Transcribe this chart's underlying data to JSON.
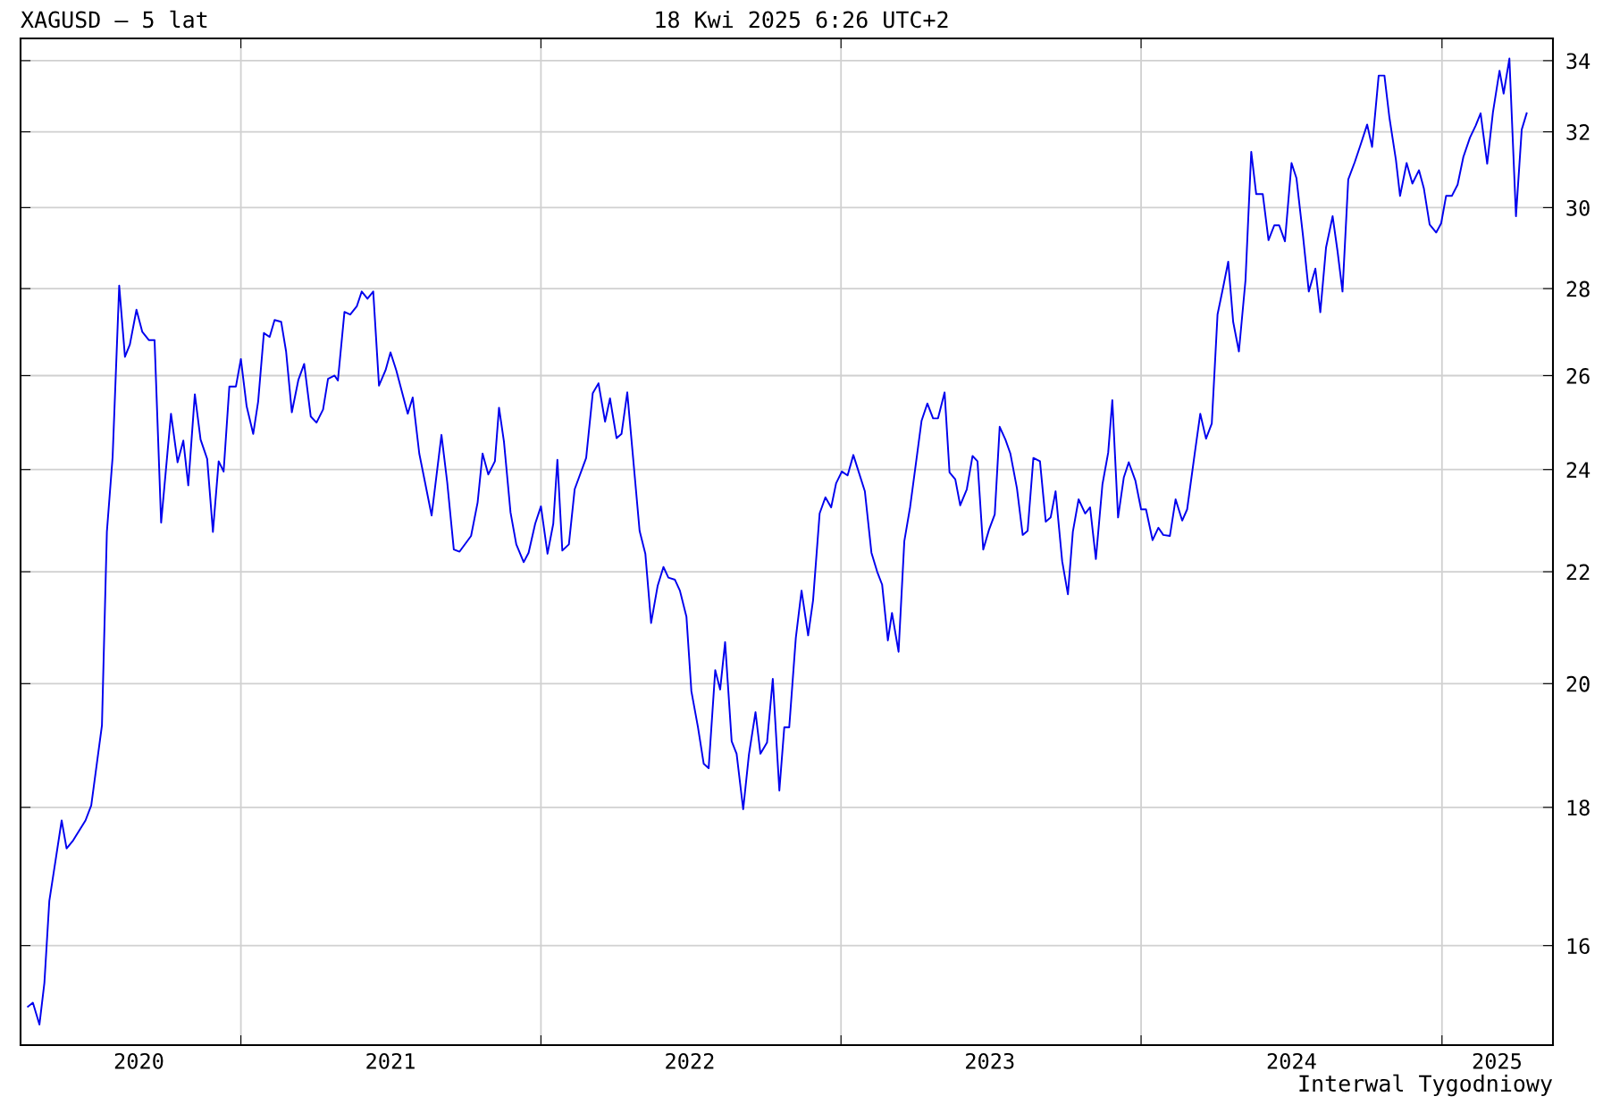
{
  "chart_data": {
    "type": "line",
    "title": "XAGUSD – 5 lat",
    "subtitle": "18 Kwi 2025 6:26 UTC+2",
    "annotations": [
      "Interwal Tygodniowy"
    ],
    "x": [
      "2020-04-17",
      "2020-04-23",
      "2020-05-01",
      "2020-05-07",
      "2020-05-13",
      "2020-05-20",
      "2020-05-28",
      "2020-06-03",
      "2020-06-11",
      "2020-06-26",
      "2020-07-03",
      "2020-07-16",
      "2020-07-22",
      "2020-07-29",
      "2020-08-06",
      "2020-08-13",
      "2020-08-19",
      "2020-08-27",
      "2020-09-03",
      "2020-09-11",
      "2020-09-18",
      "2020-09-26",
      "2020-10-08",
      "2020-10-16",
      "2020-10-23",
      "2020-10-29",
      "2020-11-06",
      "2020-11-13",
      "2020-11-21",
      "2020-11-28",
      "2020-12-05",
      "2020-12-11",
      "2020-12-18",
      "2020-12-26",
      "2021-01-01",
      "2021-01-08",
      "2021-01-16",
      "2021-01-22",
      "2021-01-29",
      "2021-02-05",
      "2021-02-11",
      "2021-02-19",
      "2021-02-25",
      "2021-03-04",
      "2021-03-12",
      "2021-03-19",
      "2021-03-27",
      "2021-04-03",
      "2021-04-11",
      "2021-04-17",
      "2021-04-25",
      "2021-04-29",
      "2021-05-07",
      "2021-05-14",
      "2021-05-22",
      "2021-05-28",
      "2021-06-04",
      "2021-06-11",
      "2021-06-18",
      "2021-06-26",
      "2021-07-02",
      "2021-07-09",
      "2021-07-23",
      "2021-07-29",
      "2021-08-06",
      "2021-08-13",
      "2021-08-21",
      "2021-09-02",
      "2021-09-09",
      "2021-09-17",
      "2021-09-24",
      "2021-10-08",
      "2021-10-16",
      "2021-10-22",
      "2021-10-29",
      "2021-11-06",
      "2021-11-11",
      "2021-11-17",
      "2021-11-25",
      "2021-12-02",
      "2021-12-11",
      "2021-12-17",
      "2021-12-25",
      "2022-01-01",
      "2022-01-09",
      "2022-01-16",
      "2022-01-21",
      "2022-01-27",
      "2022-02-04",
      "2022-02-11",
      "2022-02-25",
      "2022-03-05",
      "2022-03-12",
      "2022-03-20",
      "2022-03-26",
      "2022-04-03",
      "2022-04-09",
      "2022-04-16",
      "2022-05-01",
      "2022-05-08",
      "2022-05-15",
      "2022-05-23",
      "2022-05-30",
      "2022-06-05",
      "2022-06-13",
      "2022-06-19",
      "2022-06-27",
      "2022-07-03",
      "2022-07-11",
      "2022-07-18",
      "2022-07-24",
      "2022-08-01",
      "2022-08-07",
      "2022-08-13",
      "2022-08-21",
      "2022-08-27",
      "2022-09-04",
      "2022-09-11",
      "2022-09-19",
      "2022-09-25",
      "2022-10-03",
      "2022-10-10",
      "2022-10-18",
      "2022-10-24",
      "2022-10-30",
      "2022-11-07",
      "2022-11-14",
      "2022-11-22",
      "2022-11-28",
      "2022-12-06",
      "2022-12-13",
      "2022-12-20",
      "2022-12-26",
      "2023-01-02",
      "2023-01-09",
      "2023-01-16",
      "2023-01-30",
      "2023-02-07",
      "2023-02-14",
      "2023-02-20",
      "2023-02-27",
      "2023-03-04",
      "2023-03-12",
      "2023-03-19",
      "2023-03-26",
      "2023-04-09",
      "2023-04-16",
      "2023-04-23",
      "2023-04-29",
      "2023-05-07",
      "2023-05-13",
      "2023-05-20",
      "2023-05-26",
      "2023-06-03",
      "2023-06-10",
      "2023-06-16",
      "2023-06-23",
      "2023-06-30",
      "2023-07-07",
      "2023-07-13",
      "2023-07-20",
      "2023-07-26",
      "2023-08-03",
      "2023-08-10",
      "2023-08-16",
      "2023-08-23",
      "2023-08-31",
      "2023-09-07",
      "2023-09-13",
      "2023-09-19",
      "2023-09-27",
      "2023-10-04",
      "2023-10-10",
      "2023-10-17",
      "2023-10-25",
      "2023-10-31",
      "2023-11-07",
      "2023-11-15",
      "2023-11-22",
      "2023-11-27",
      "2023-12-04",
      "2023-12-11",
      "2023-12-17",
      "2023-12-25",
      "2024-01-01",
      "2024-01-07",
      "2024-01-15",
      "2024-01-22",
      "2024-01-28",
      "2024-02-05",
      "2024-02-12",
      "2024-02-20",
      "2024-02-26",
      "2024-03-06",
      "2024-03-13",
      "2024-03-20",
      "2024-03-27",
      "2024-04-03",
      "2024-04-10",
      "2024-04-16",
      "2024-04-22",
      "2024-04-29",
      "2024-05-07",
      "2024-05-14",
      "2024-05-20",
      "2024-05-28",
      "2024-06-04",
      "2024-06-11",
      "2024-06-17",
      "2024-06-24",
      "2024-07-02",
      "2024-07-08",
      "2024-07-16",
      "2024-07-23",
      "2024-07-31",
      "2024-08-06",
      "2024-08-13",
      "2024-08-21",
      "2024-08-27",
      "2024-09-02",
      "2024-09-09",
      "2024-09-17",
      "2024-09-24",
      "2024-10-02",
      "2024-10-08",
      "2024-10-16",
      "2024-10-23",
      "2024-10-29",
      "2024-11-06",
      "2024-11-11",
      "2024-11-19",
      "2024-11-26",
      "2024-12-04",
      "2024-12-10",
      "2024-12-17",
      "2024-12-25",
      "2024-12-31",
      "2025-01-06",
      "2025-01-13",
      "2025-01-20",
      "2025-01-27",
      "2025-02-04",
      "2025-02-11",
      "2025-02-17",
      "2025-02-25",
      "2025-03-04",
      "2025-03-12",
      "2025-03-17",
      "2025-03-24",
      "2025-04-01",
      "2025-04-08",
      "2025-04-14"
    ],
    "series": [
      {
        "color": "#0000ee",
        "values": [
          15.19,
          15.24,
          14.96,
          15.5,
          16.62,
          17.16,
          17.8,
          17.38,
          17.5,
          17.8,
          18.03,
          19.3,
          22.76,
          24.26,
          28.07,
          26.42,
          26.7,
          27.5,
          26.99,
          26.8,
          26.8,
          22.94,
          25.17,
          24.15,
          24.6,
          23.68,
          25.59,
          24.62,
          24.22,
          22.76,
          24.17,
          23.96,
          25.76,
          25.76,
          26.37,
          25.33,
          24.74,
          25.43,
          26.96,
          26.87,
          27.26,
          27.22,
          26.54,
          25.2,
          25.91,
          26.26,
          25.11,
          24.98,
          25.26,
          25.93,
          26.0,
          25.89,
          27.45,
          27.39,
          27.58,
          27.93,
          27.76,
          27.93,
          25.78,
          26.12,
          26.52,
          26.12,
          25.17,
          25.52,
          24.33,
          23.74,
          23.08,
          24.72,
          23.74,
          22.42,
          22.38,
          22.68,
          23.34,
          24.33,
          23.9,
          24.17,
          25.3,
          24.58,
          23.14,
          22.52,
          22.18,
          22.36,
          22.92,
          23.26,
          22.34,
          22.92,
          24.2,
          22.4,
          22.52,
          23.6,
          24.24,
          25.61,
          25.83,
          25.0,
          25.5,
          24.65,
          24.74,
          25.63,
          22.78,
          22.34,
          21.06,
          21.74,
          22.09,
          21.89,
          21.85,
          21.65,
          21.17,
          19.87,
          19.27,
          18.68,
          18.61,
          20.23,
          19.9,
          20.72,
          19.04,
          18.84,
          17.97,
          18.83,
          19.52,
          18.84,
          19.02,
          20.08,
          18.26,
          19.27,
          19.27,
          20.79,
          21.65,
          20.84,
          21.47,
          23.12,
          23.44,
          23.24,
          23.72,
          23.96,
          23.88,
          24.3,
          23.56,
          22.36,
          22.0,
          21.76,
          20.75,
          21.24,
          20.55,
          22.58,
          23.24,
          25.02,
          25.39,
          25.07,
          25.07,
          25.63,
          23.94,
          23.8,
          23.28,
          23.6,
          24.28,
          24.17,
          22.42,
          22.8,
          23.1,
          24.89,
          24.62,
          24.33,
          23.62,
          22.7,
          22.78,
          24.24,
          24.17,
          22.96,
          23.04,
          23.56,
          22.2,
          21.58,
          22.76,
          23.4,
          23.12,
          23.24,
          22.24,
          23.7,
          24.35,
          25.46,
          23.04,
          23.84,
          24.15,
          23.78,
          23.2,
          23.2,
          22.6,
          22.84,
          22.7,
          22.68,
          23.4,
          22.98,
          23.2,
          24.3,
          25.17,
          24.64,
          24.96,
          27.39,
          28.05,
          28.65,
          27.22,
          26.54,
          28.2,
          31.46,
          30.35,
          30.35,
          29.18,
          29.55,
          29.55,
          29.15,
          31.16,
          30.76,
          29.28,
          27.93,
          28.48,
          27.44,
          29.0,
          29.78,
          28.9,
          27.93,
          30.73,
          31.19,
          31.65,
          32.2,
          31.59,
          33.57,
          33.57,
          32.4,
          31.24,
          30.3,
          31.16,
          30.62,
          30.97,
          30.49,
          29.57,
          29.37,
          29.6,
          30.3,
          30.3,
          30.59,
          31.32,
          31.84,
          32.17,
          32.51,
          31.14,
          32.54,
          33.71,
          33.06,
          34.06,
          29.78,
          32.06,
          32.51
        ]
      }
    ],
    "xlim": [
      "2020-04-08",
      "2025-05-16"
    ],
    "xticks": [
      {
        "value": "2021-01-01",
        "label": null
      },
      {
        "value": "2022-01-01",
        "label": null
      },
      {
        "value": "2023-01-01",
        "label": null
      },
      {
        "value": "2024-01-01",
        "label": null
      },
      {
        "value": "2025-01-01",
        "label": null
      },
      {
        "value": "2020-08-30",
        "label": "2020"
      },
      {
        "value": "2021-07-02",
        "label": "2021"
      },
      {
        "value": "2022-07-01",
        "label": "2022"
      },
      {
        "value": "2023-07-01",
        "label": "2023"
      },
      {
        "value": "2024-07-02",
        "label": "2024"
      },
      {
        "value": "2025-03-09",
        "label": "2025"
      }
    ],
    "ylim": [
      14.7,
      34.65
    ],
    "yticks": [
      16,
      18,
      20,
      22,
      24,
      26,
      28,
      30,
      32,
      34
    ],
    "log": "y",
    "grid": true,
    "legend": false,
    "marker": "none",
    "line_style": "solid"
  }
}
